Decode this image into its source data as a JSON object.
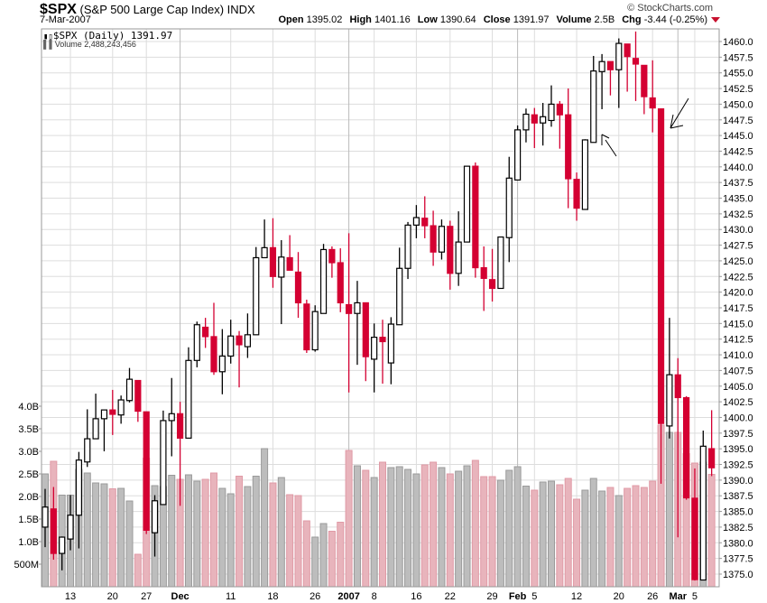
{
  "header": {
    "symbol": "$SPX",
    "name": "(S&P 500 Large Cap Index)",
    "exchange": "INDX",
    "date": "7-Mar-2007",
    "credit": "© StockCharts.com",
    "open_label": "Open",
    "open": "1395.02",
    "high_label": "High",
    "high": "1401.16",
    "low_label": "Low",
    "low": "1390.64",
    "close_label": "Close",
    "close": "1391.97",
    "volume_label": "Volume",
    "volume": "2.5B",
    "chg_label": "Chg",
    "chg": "-3.44 (-0.25%)",
    "chg_direction": "down"
  },
  "legend": {
    "price": "$SPX (Daily) 1391.97",
    "volume": "Volume 2,488,243,456"
  },
  "chart_data": {
    "type": "candlestick",
    "colors": {
      "up": "#000000",
      "down": "#d40032",
      "volume_up": "#bdbdbd",
      "volume_down": "#e8b4bc",
      "grid": "#dddddd"
    },
    "price_axis": {
      "min": 1372.5,
      "max": 1462.5,
      "tick_step": 2.5,
      "ticks": [
        "1375.0",
        "1377.5",
        "1380.0",
        "1382.5",
        "1385.0",
        "1387.5",
        "1390.0",
        "1392.5",
        "1395.0",
        "1397.5",
        "1400.0",
        "1402.5",
        "1405.0",
        "1407.5",
        "1410.0",
        "1412.5",
        "1415.0",
        "1417.5",
        "1420.0",
        "1422.5",
        "1425.0",
        "1427.5",
        "1430.0",
        "1432.5",
        "1435.0",
        "1437.5",
        "1440.0",
        "1442.5",
        "1445.0",
        "1447.5",
        "1450.0",
        "1452.5",
        "1455.0",
        "1457.5",
        "1460.0"
      ],
      "position": "right"
    },
    "volume_axis": {
      "ticks": [
        {
          "label": "500M",
          "value": 0.5
        },
        {
          "label": "1.0B",
          "value": 1.0
        },
        {
          "label": "1.5B",
          "value": 1.5
        },
        {
          "label": "2.0B",
          "value": 2.0
        },
        {
          "label": "2.5B",
          "value": 2.5
        },
        {
          "label": "3.0B",
          "value": 3.0
        },
        {
          "label": "3.5B",
          "value": 3.5
        },
        {
          "label": "4.0B",
          "value": 4.0
        }
      ],
      "unit": "billions",
      "position": "left"
    },
    "x_ticks": [
      {
        "label": "13",
        "date": "2006-11-13"
      },
      {
        "label": "20",
        "date": "2006-11-20"
      },
      {
        "label": "27",
        "date": "2006-11-27"
      },
      {
        "label": "Dec",
        "date": "2006-12-01",
        "bold": true
      },
      {
        "label": "11",
        "date": "2006-12-11"
      },
      {
        "label": "18",
        "date": "2006-12-18"
      },
      {
        "label": "26",
        "date": "2006-12-26"
      },
      {
        "label": "2007",
        "date": "2007-01-03",
        "bold": true
      },
      {
        "label": "8",
        "date": "2007-01-08"
      },
      {
        "label": "16",
        "date": "2007-01-16"
      },
      {
        "label": "22",
        "date": "2007-01-22"
      },
      {
        "label": "29",
        "date": "2007-01-29"
      },
      {
        "label": "Feb",
        "date": "2007-02-01",
        "bold": true
      },
      {
        "label": "5",
        "date": "2007-02-05"
      },
      {
        "label": "12",
        "date": "2007-02-12"
      },
      {
        "label": "20",
        "date": "2007-02-20"
      },
      {
        "label": "26",
        "date": "2007-02-26"
      },
      {
        "label": "Mar",
        "date": "2007-03-01",
        "bold": true
      },
      {
        "label": "5",
        "date": "2007-03-05"
      }
    ],
    "dates": [
      "2006-11-08",
      "2006-11-09",
      "2006-11-10",
      "2006-11-13",
      "2006-11-14",
      "2006-11-15",
      "2006-11-16",
      "2006-11-17",
      "2006-11-20",
      "2006-11-21",
      "2006-11-22",
      "2006-11-24",
      "2006-11-27",
      "2006-11-28",
      "2006-11-29",
      "2006-11-30",
      "2006-12-01",
      "2006-12-04",
      "2006-12-05",
      "2006-12-06",
      "2006-12-07",
      "2006-12-08",
      "2006-12-11",
      "2006-12-12",
      "2006-12-13",
      "2006-12-14",
      "2006-12-15",
      "2006-12-18",
      "2006-12-19",
      "2006-12-20",
      "2006-12-21",
      "2006-12-22",
      "2006-12-26",
      "2006-12-27",
      "2006-12-28",
      "2006-12-29",
      "2007-01-03",
      "2007-01-04",
      "2007-01-05",
      "2007-01-08",
      "2007-01-09",
      "2007-01-10",
      "2007-01-11",
      "2007-01-12",
      "2007-01-16",
      "2007-01-17",
      "2007-01-18",
      "2007-01-19",
      "2007-01-22",
      "2007-01-23",
      "2007-01-24",
      "2007-01-25",
      "2007-01-26",
      "2007-01-29",
      "2007-01-30",
      "2007-01-31",
      "2007-02-01",
      "2007-02-02",
      "2007-02-05",
      "2007-02-06",
      "2007-02-07",
      "2007-02-08",
      "2007-02-09",
      "2007-02-12",
      "2007-02-13",
      "2007-02-14",
      "2007-02-15",
      "2007-02-16",
      "2007-02-20",
      "2007-02-21",
      "2007-02-22",
      "2007-02-23",
      "2007-02-26",
      "2007-02-27",
      "2007-02-28",
      "2007-03-01",
      "2007-03-02",
      "2007-03-05",
      "2007-03-06",
      "2007-03-07"
    ],
    "ohlc": [
      [
        1382.5,
        1388.6,
        1379.3,
        1385.7
      ],
      [
        1385.4,
        1388.9,
        1377.3,
        1378.3
      ],
      [
        1378.3,
        1381.0,
        1375.6,
        1380.9
      ],
      [
        1380.6,
        1387.6,
        1378.8,
        1384.4
      ],
      [
        1384.4,
        1394.5,
        1379.1,
        1393.2
      ],
      [
        1392.9,
        1401.3,
        1392.1,
        1396.6
      ],
      [
        1396.6,
        1403.8,
        1396.6,
        1399.8
      ],
      [
        1399.8,
        1401.2,
        1394.6,
        1401.2
      ],
      [
        1401.2,
        1404.4,
        1397.2,
        1400.5
      ],
      [
        1400.4,
        1403.5,
        1399.0,
        1402.8
      ],
      [
        1402.7,
        1407.9,
        1402.4,
        1406.1
      ],
      [
        1405.9,
        1405.9,
        1399.3,
        1401.0
      ],
      [
        1400.9,
        1400.9,
        1381.4,
        1382.0
      ],
      [
        1381.6,
        1387.6,
        1377.8,
        1386.7
      ],
      [
        1386.1,
        1401.1,
        1386.1,
        1399.5
      ],
      [
        1399.5,
        1406.3,
        1393.8,
        1400.6
      ],
      [
        1400.6,
        1402.5,
        1385.9,
        1396.7
      ],
      [
        1396.7,
        1411.2,
        1396.7,
        1409.1
      ],
      [
        1409.1,
        1415.3,
        1408.0,
        1414.8
      ],
      [
        1414.4,
        1415.9,
        1411.1,
        1412.9
      ],
      [
        1412.9,
        1418.3,
        1406.8,
        1407.3
      ],
      [
        1407.3,
        1414.1,
        1403.7,
        1409.8
      ],
      [
        1409.8,
        1415.6,
        1408.6,
        1413.0
      ],
      [
        1413.0,
        1413.8,
        1404.8,
        1411.6
      ],
      [
        1411.3,
        1416.6,
        1409.5,
        1413.2
      ],
      [
        1413.2,
        1427.2,
        1413.2,
        1425.5
      ],
      [
        1425.5,
        1431.6,
        1425.5,
        1427.1
      ],
      [
        1427.1,
        1431.8,
        1420.7,
        1422.5
      ],
      [
        1422.4,
        1428.3,
        1414.9,
        1425.6
      ],
      [
        1425.5,
        1429.1,
        1423.5,
        1423.5
      ],
      [
        1423.2,
        1426.4,
        1415.9,
        1418.3
      ],
      [
        1418.1,
        1418.8,
        1410.3,
        1410.8
      ],
      [
        1410.8,
        1417.9,
        1410.5,
        1416.9
      ],
      [
        1416.6,
        1427.7,
        1416.6,
        1426.8
      ],
      [
        1426.8,
        1427.3,
        1422.3,
        1424.7
      ],
      [
        1424.7,
        1427.0,
        1416.8,
        1418.3
      ],
      [
        1418.0,
        1429.4,
        1404.0,
        1416.6
      ],
      [
        1416.6,
        1421.8,
        1408.4,
        1418.3
      ],
      [
        1418.3,
        1418.3,
        1405.8,
        1409.7
      ],
      [
        1409.3,
        1415.0,
        1404.0,
        1412.8
      ],
      [
        1412.8,
        1415.6,
        1405.4,
        1412.1
      ],
      [
        1408.7,
        1416.0,
        1405.3,
        1414.9
      ],
      [
        1414.8,
        1427.1,
        1414.8,
        1423.8
      ],
      [
        1423.8,
        1431.2,
        1422.1,
        1430.7
      ],
      [
        1430.7,
        1433.9,
        1428.6,
        1431.9
      ],
      [
        1431.8,
        1435.3,
        1428.6,
        1430.6
      ],
      [
        1430.6,
        1433.0,
        1424.2,
        1426.4
      ],
      [
        1426.4,
        1431.6,
        1425.2,
        1430.5
      ],
      [
        1430.5,
        1431.4,
        1420.4,
        1423.0
      ],
      [
        1423.0,
        1432.9,
        1421.0,
        1428.0
      ],
      [
        1428.0,
        1440.1,
        1428.0,
        1440.1
      ],
      [
        1440.1,
        1440.7,
        1422.3,
        1423.9
      ],
      [
        1423.9,
        1427.3,
        1417.0,
        1422.2
      ],
      [
        1422.0,
        1426.9,
        1418.5,
        1420.6
      ],
      [
        1420.6,
        1428.8,
        1420.6,
        1428.8
      ],
      [
        1428.7,
        1441.6,
        1424.8,
        1438.2
      ],
      [
        1437.9,
        1446.6,
        1437.9,
        1445.9
      ],
      [
        1445.9,
        1449.3,
        1443.9,
        1448.4
      ],
      [
        1448.3,
        1449.4,
        1443.0,
        1447.0
      ],
      [
        1447.0,
        1450.2,
        1443.4,
        1448.0
      ],
      [
        1447.4,
        1453.0,
        1446.4,
        1450.0
      ],
      [
        1450.0,
        1450.5,
        1442.9,
        1448.3
      ],
      [
        1448.3,
        1452.5,
        1433.4,
        1438.1
      ],
      [
        1438.0,
        1439.1,
        1431.4,
        1433.4
      ],
      [
        1433.2,
        1444.4,
        1433.2,
        1444.3
      ],
      [
        1443.9,
        1457.7,
        1443.9,
        1455.3
      ],
      [
        1455.2,
        1458.0,
        1449.2,
        1456.8
      ],
      [
        1456.8,
        1456.8,
        1451.4,
        1455.5
      ],
      [
        1455.5,
        1460.5,
        1449.4,
        1459.7
      ],
      [
        1459.6,
        1459.6,
        1452.0,
        1457.6
      ],
      [
        1457.3,
        1461.6,
        1450.5,
        1456.4
      ],
      [
        1456.2,
        1456.2,
        1448.4,
        1451.2
      ],
      [
        1451.0,
        1457.0,
        1445.5,
        1449.4
      ],
      [
        1449.25,
        1449.25,
        1389.42,
        1399.04
      ],
      [
        1398.64,
        1415.89,
        1396.65,
        1406.82
      ],
      [
        1406.8,
        1409.46,
        1380.87,
        1403.17
      ],
      [
        1403.16,
        1403.4,
        1386.87,
        1387.17
      ],
      [
        1387.11,
        1391.86,
        1373.97,
        1374.12
      ],
      [
        1374.06,
        1397.9,
        1374.06,
        1395.41
      ],
      [
        1395.02,
        1401.16,
        1390.64,
        1391.97
      ]
    ],
    "volume": [
      2.5,
      2.78,
      2.03,
      2.03,
      2.6,
      2.52,
      2.3,
      2.28,
      2.17,
      2.18,
      1.9,
      0.72,
      2.85,
      2.24,
      2.22,
      2.47,
      2.38,
      2.48,
      2.34,
      2.38,
      2.52,
      2.18,
      2.06,
      2.45,
      2.22,
      2.45,
      3.06,
      2.3,
      2.42,
      2.04,
      2.02,
      1.46,
      1.1,
      1.4,
      1.23,
      1.43,
      3.02,
      2.68,
      2.58,
      2.42,
      2.76,
      2.64,
      2.66,
      2.6,
      2.5,
      2.7,
      2.76,
      2.64,
      2.5,
      2.56,
      2.68,
      2.8,
      2.44,
      2.44,
      2.36,
      2.58,
      2.66,
      2.23,
      2.14,
      2.32,
      2.34,
      2.26,
      2.4,
      1.94,
      2.14,
      2.4,
      2.12,
      2.2,
      2.02,
      2.18,
      2.24,
      2.2,
      2.34,
      3.58,
      3.42,
      3.42,
      2.95,
      2.74,
      2.76,
      2.49
    ],
    "grid": true
  }
}
